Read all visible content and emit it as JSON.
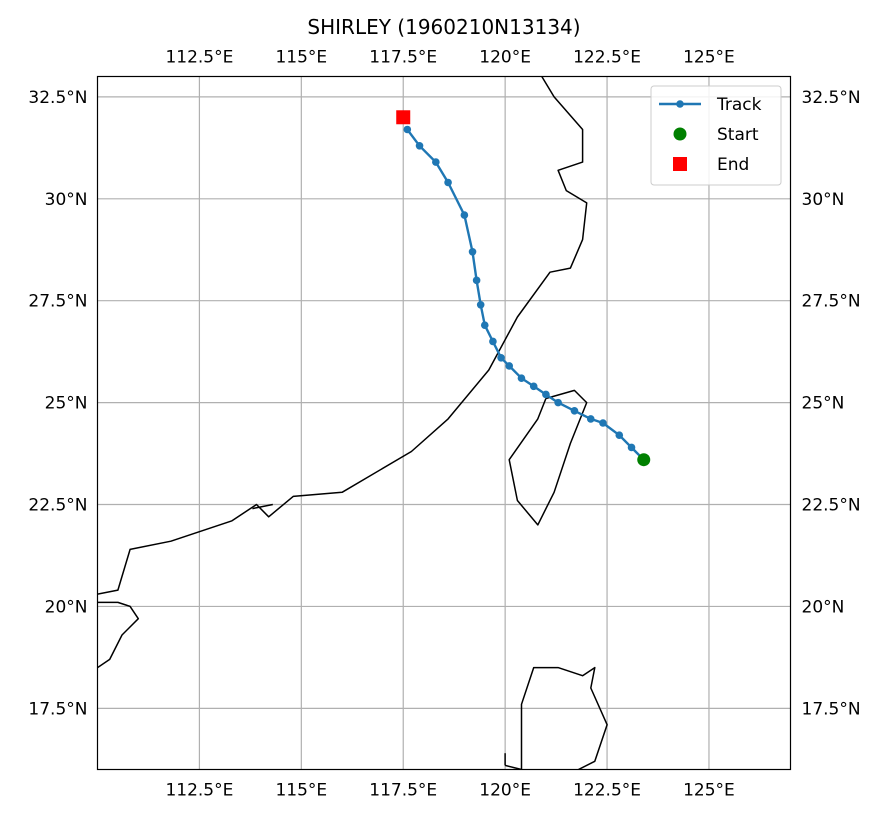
{
  "chart_data": {
    "type": "line",
    "title": "SHIRLEY (1960210N13134)",
    "xlim": [
      110,
      127
    ],
    "ylim": [
      16,
      33
    ],
    "x_ticks": [
      {
        "value": 112.5,
        "label": "112.5°E"
      },
      {
        "value": 115,
        "label": "115°E"
      },
      {
        "value": 117.5,
        "label": "117.5°E"
      },
      {
        "value": 120,
        "label": "120°E"
      },
      {
        "value": 122.5,
        "label": "122.5°E"
      },
      {
        "value": 125,
        "label": "125°E"
      }
    ],
    "y_ticks": [
      {
        "value": 17.5,
        "label": "17.5°N"
      },
      {
        "value": 20,
        "label": "20°N"
      },
      {
        "value": 22.5,
        "label": "22.5°N"
      },
      {
        "value": 25,
        "label": "25°N"
      },
      {
        "value": 27.5,
        "label": "27.5°N"
      },
      {
        "value": 30,
        "label": "30°N"
      },
      {
        "value": 32.5,
        "label": "32.5°N"
      }
    ],
    "grid": true,
    "legend_position": "top-right",
    "legend": [
      {
        "label": "Track",
        "kind": "line-marker"
      },
      {
        "label": "Start",
        "kind": "circle"
      },
      {
        "label": "End",
        "kind": "square"
      }
    ],
    "colors": {
      "track": "#1f77b4",
      "start": "#008000",
      "end": "#ff0000",
      "coast": "#000000",
      "grid": "#b0b0b0"
    },
    "series": [
      {
        "name": "Track",
        "lon": [
          123.4,
          123.1,
          122.8,
          122.4,
          122.1,
          121.7,
          121.3,
          121.0,
          120.7,
          120.4,
          120.1,
          119.9,
          119.7,
          119.5,
          119.4,
          119.3,
          119.2,
          119.0,
          118.6,
          118.3,
          117.9,
          117.6
        ],
        "lat": [
          23.6,
          23.9,
          24.2,
          24.5,
          24.6,
          24.8,
          25.0,
          25.2,
          25.4,
          25.6,
          25.9,
          26.1,
          26.5,
          26.9,
          27.4,
          28.0,
          28.7,
          29.6,
          30.4,
          30.9,
          31.3,
          31.7
        ]
      }
    ],
    "start": {
      "lon": 123.4,
      "lat": 23.6
    },
    "end": {
      "lon": 117.5,
      "lat": 32.0
    },
    "coastlines": [
      [
        [
          120.9,
          33.0
        ],
        [
          121.2,
          32.5
        ],
        [
          121.9,
          31.7
        ],
        [
          121.9,
          30.9
        ],
        [
          121.3,
          30.7
        ],
        [
          121.5,
          30.2
        ],
        [
          122.0,
          29.9
        ],
        [
          121.9,
          29.0
        ],
        [
          121.6,
          28.3
        ],
        [
          121.1,
          28.2
        ],
        [
          120.3,
          27.1
        ],
        [
          119.6,
          25.8
        ],
        [
          118.6,
          24.6
        ],
        [
          117.7,
          23.8
        ],
        [
          116.0,
          22.8
        ],
        [
          114.8,
          22.7
        ],
        [
          114.2,
          22.2
        ],
        [
          113.9,
          22.5
        ],
        [
          113.3,
          22.1
        ],
        [
          111.8,
          21.6
        ],
        [
          110.8,
          21.4
        ],
        [
          110.5,
          20.4
        ],
        [
          110.0,
          20.3
        ]
      ],
      [
        [
          121.0,
          25.1
        ],
        [
          121.7,
          25.3
        ],
        [
          122.0,
          25.0
        ],
        [
          121.6,
          24.0
        ],
        [
          121.2,
          22.8
        ],
        [
          120.8,
          22.0
        ],
        [
          120.3,
          22.6
        ],
        [
          120.1,
          23.6
        ],
        [
          120.8,
          24.6
        ],
        [
          121.0,
          25.1
        ]
      ],
      [
        [
          110.0,
          20.1
        ],
        [
          110.5,
          20.1
        ],
        [
          110.8,
          20.0
        ],
        [
          111.0,
          19.7
        ],
        [
          110.6,
          19.3
        ],
        [
          110.3,
          18.7
        ],
        [
          110.0,
          18.5
        ]
      ],
      [
        [
          120.0,
          16.1
        ],
        [
          120.4,
          16.0
        ],
        [
          120.4,
          17.6
        ],
        [
          120.7,
          18.5
        ],
        [
          121.3,
          18.5
        ],
        [
          121.9,
          18.3
        ],
        [
          122.2,
          18.5
        ],
        [
          122.1,
          18.0
        ],
        [
          122.5,
          17.1
        ],
        [
          122.2,
          16.2
        ],
        [
          121.8,
          16.0
        ]
      ],
      [
        [
          120.0,
          16.1
        ],
        [
          120.0,
          16.4
        ]
      ],
      [
        [
          113.8,
          22.4
        ],
        [
          114.3,
          22.5
        ]
      ]
    ]
  }
}
